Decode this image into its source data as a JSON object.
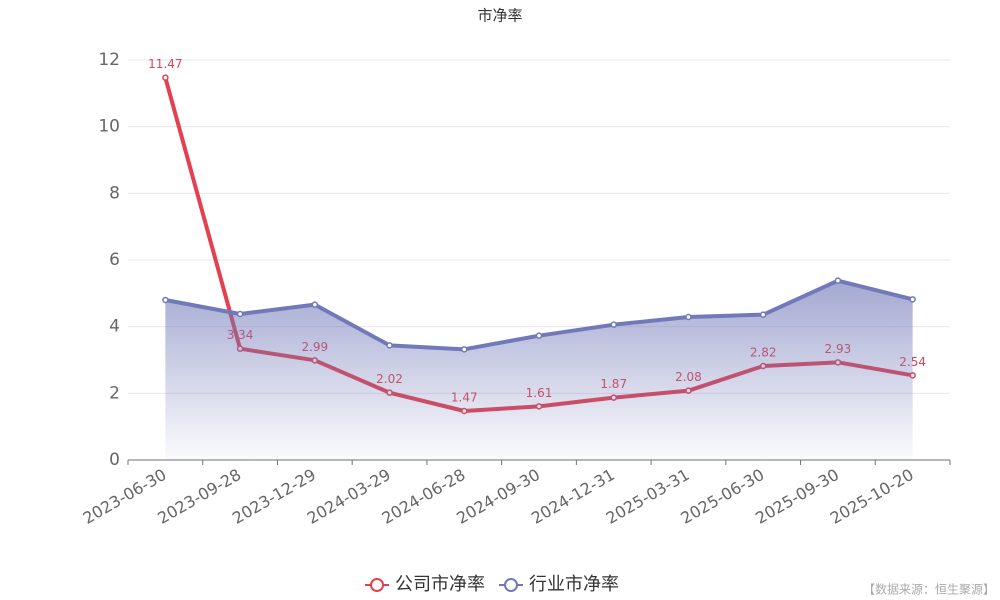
{
  "chart_data": {
    "type": "line",
    "title": "市净率",
    "categories": [
      "2023-06-30",
      "2023-09-28",
      "2023-12-29",
      "2024-03-29",
      "2024-06-28",
      "2024-09-30",
      "2024-12-31",
      "2025-03-31",
      "2025-06-30",
      "2025-09-30",
      "2025-10-20"
    ],
    "series": [
      {
        "name": "公司市净率",
        "color": "#e5404f",
        "values": [
          11.47,
          3.34,
          2.99,
          2.02,
          1.47,
          1.61,
          1.87,
          2.08,
          2.82,
          2.93,
          2.54
        ],
        "data_labels": true
      },
      {
        "name": "行业市净率",
        "color": "#7179b8",
        "values": [
          4.8,
          4.38,
          4.66,
          3.44,
          3.32,
          3.73,
          4.06,
          4.29,
          4.36,
          5.38,
          4.82
        ],
        "area": true
      }
    ],
    "ylim": [
      0,
      12
    ],
    "yticks": [
      0,
      2,
      4,
      6,
      8,
      10,
      12
    ],
    "grid": true,
    "legend": "bottom",
    "source": "【数据来源：恒生聚源】"
  }
}
